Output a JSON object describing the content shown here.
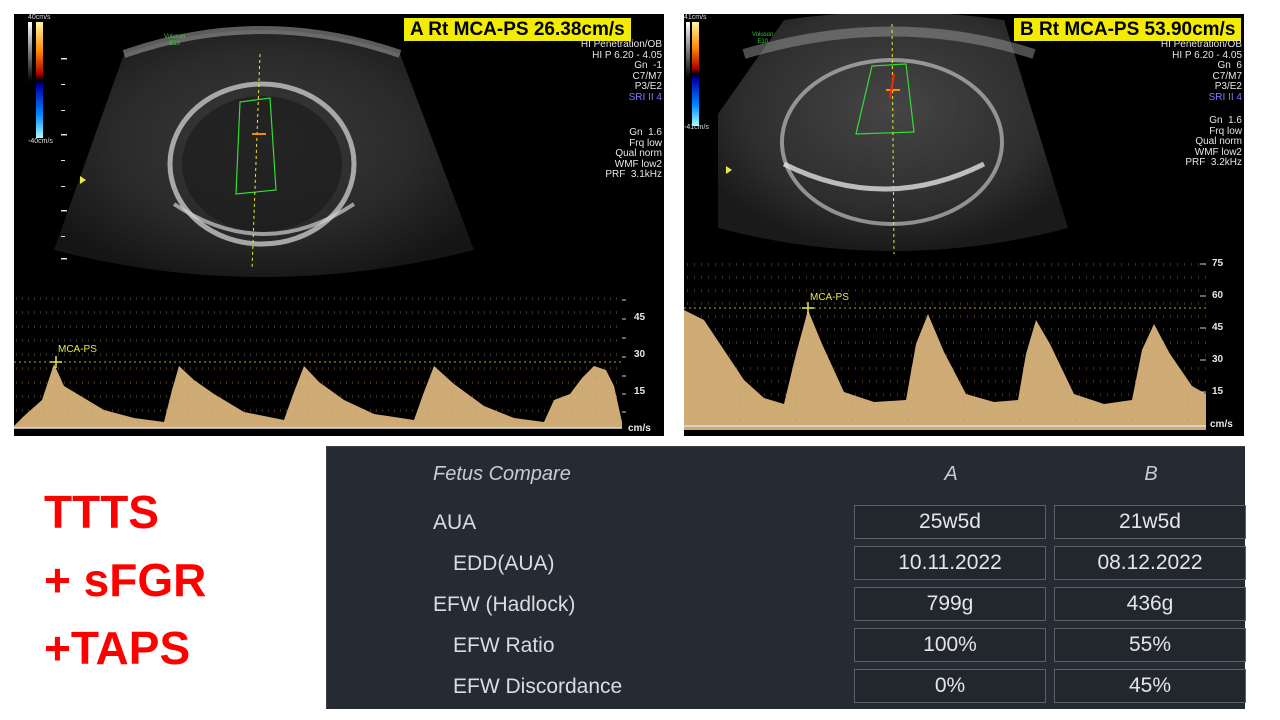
{
  "panelA": {
    "header": "A Rt MCA-PS 26.38cm/s",
    "color_scale_top": "40cm/s",
    "color_scale_bottom": "-40cm/s",
    "voluson_label": "Voluson",
    "probe_label": "E10",
    "settings": [
      "HI Penetration/OB",
      "HI P 6.20 - 4.05",
      "Gn  -1",
      "C7/M7",
      "P3/E2"
    ],
    "sri": "SRI II 4",
    "doppler_settings": [
      "Gn  1.6",
      "Frq low",
      "Qual norm",
      "WMF low2",
      "PRF  3.1kHz"
    ],
    "marker_label": "MCA-PS",
    "doppler_ticks": [
      "45",
      "30",
      "15"
    ],
    "unit": "cm/s"
  },
  "panelB": {
    "header": "B Rt MCA-PS 53.90cm/s",
    "color_scale_top": "41cm/s",
    "color_scale_bottom": "-41cm/s",
    "voluson_label": "Voluson",
    "probe_label": "E10",
    "settings": [
      "HI Penetration/OB",
      "HI P 6.20 - 4.05",
      "Gn  6",
      "C7/M7",
      "P3/E2"
    ],
    "sri": "SRI II 4",
    "doppler_settings": [
      "Gn  1.6",
      "Frq low",
      "Qual norm",
      "WMF low2",
      "PRF  3.2kHz"
    ],
    "marker_label": "MCA-PS",
    "doppler_ticks": [
      "75",
      "60",
      "45",
      "30",
      "15"
    ],
    "unit": "cm/s"
  },
  "diagnosis": [
    "TTTS",
    "+ sFGR",
    "+TAPS"
  ],
  "fetus_compare": {
    "title": "Fetus Compare",
    "col_a": "A",
    "col_b": "B",
    "rows": [
      {
        "label": "AUA",
        "a": "25w5d",
        "b": "21w5d"
      },
      {
        "label": "EDD(AUA)",
        "a": "10.11.2022",
        "b": "08.12.2022"
      },
      {
        "label": "EFW (Hadlock)",
        "a": "799g",
        "b": "436g"
      },
      {
        "label": "EFW Ratio",
        "a": "100%",
        "b": "55%"
      },
      {
        "label": "EFW Discordance",
        "a": "0%",
        "b": "45%"
      }
    ]
  },
  "colors": {
    "header_bg": "#f2ec00",
    "diagnosis": "#ff0000",
    "doppler": "#f2c98a",
    "table_bg": "#262b33"
  }
}
